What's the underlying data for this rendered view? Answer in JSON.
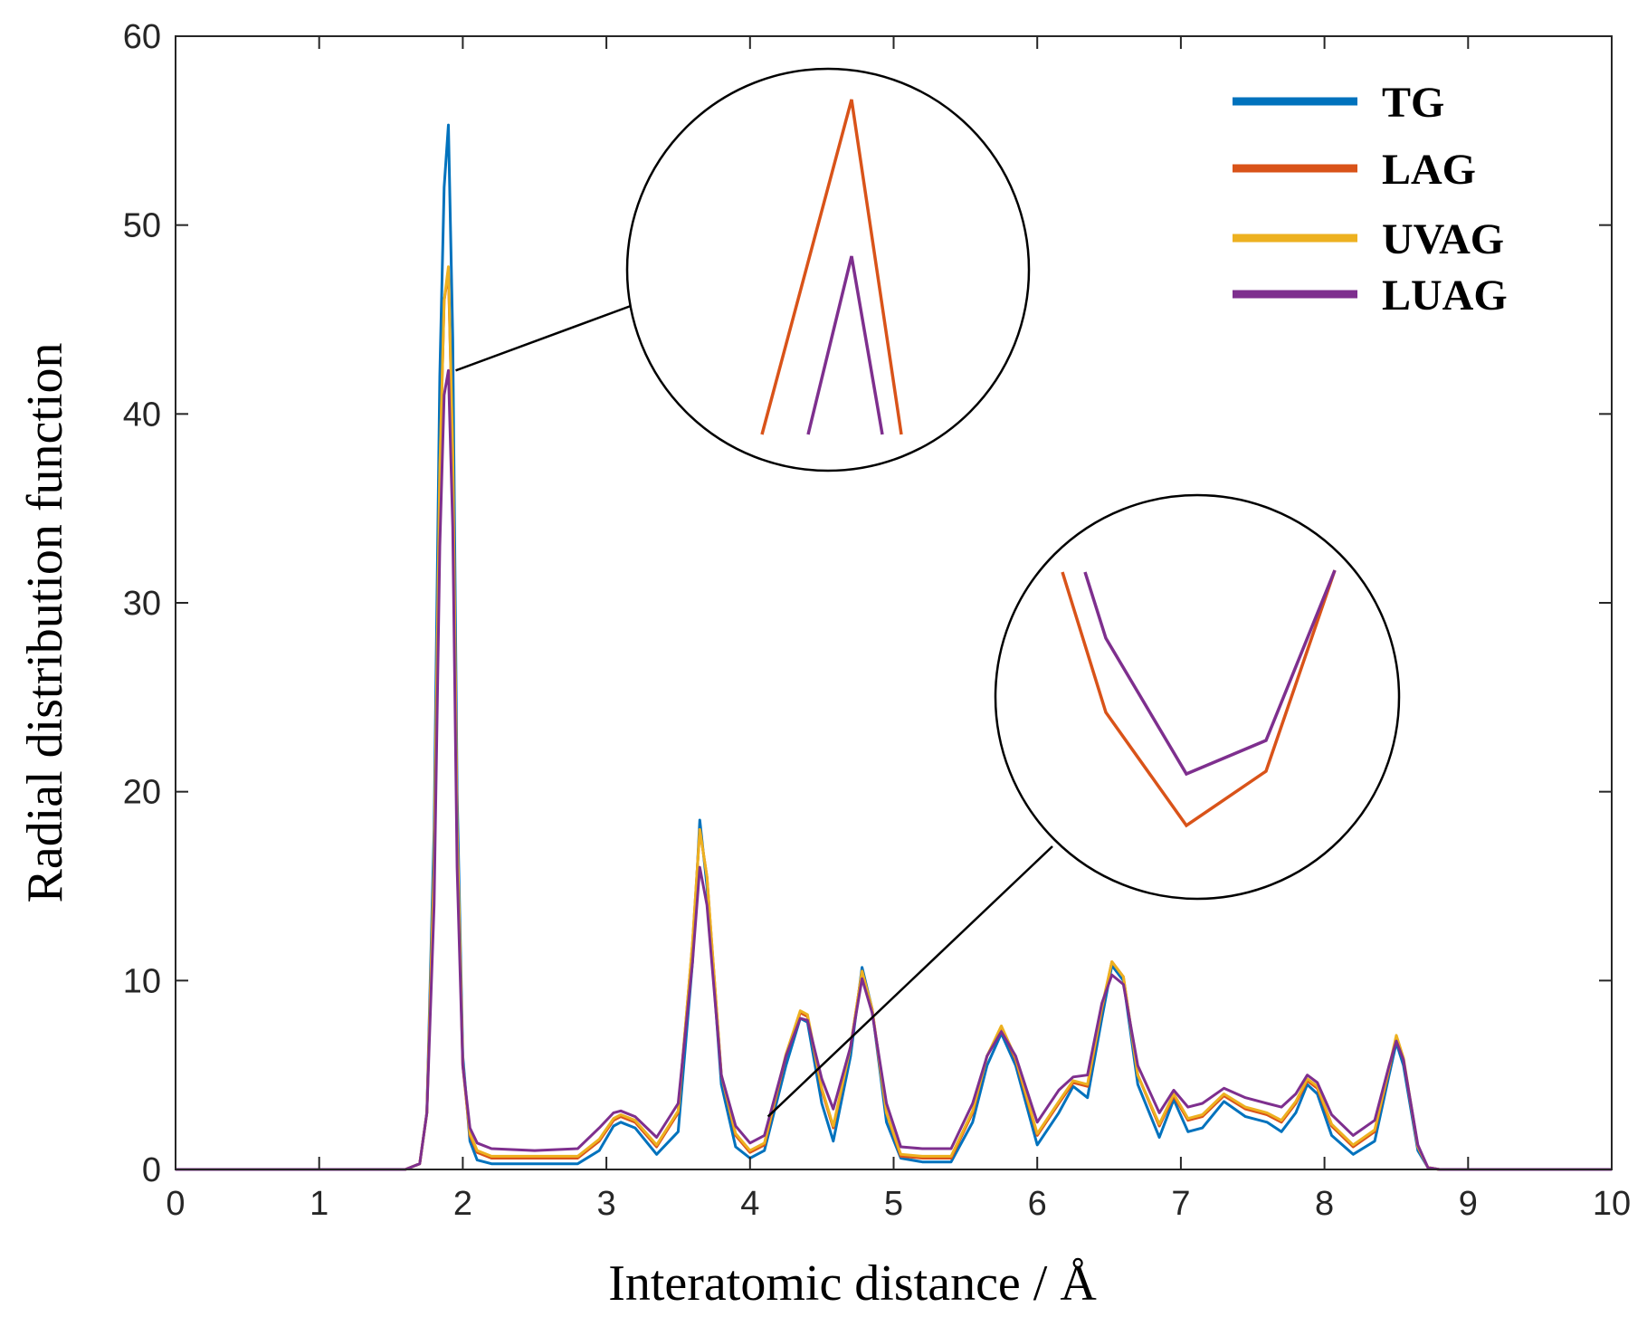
{
  "chart_data": {
    "type": "line",
    "title": "",
    "xlabel": "Interatomic distance / Å",
    "ylabel": "Radial distribution function",
    "xlim": [
      0,
      10
    ],
    "ylim": [
      0,
      60
    ],
    "xticks": [
      "0",
      "1",
      "2",
      "3",
      "4",
      "5",
      "6",
      "7",
      "8",
      "9",
      "10"
    ],
    "yticks": [
      "0",
      "10",
      "20",
      "30",
      "40",
      "50",
      "60"
    ],
    "legend_position": "top-right",
    "x": [
      0,
      1.6,
      1.7,
      1.75,
      1.8,
      1.84,
      1.87,
      1.9,
      1.93,
      1.96,
      2.0,
      2.05,
      2.1,
      2.2,
      2.5,
      2.8,
      2.95,
      3.05,
      3.1,
      3.2,
      3.35,
      3.5,
      3.6,
      3.65,
      3.7,
      3.8,
      3.9,
      4.0,
      4.1,
      4.25,
      4.35,
      4.4,
      4.5,
      4.58,
      4.7,
      4.78,
      4.85,
      4.95,
      5.05,
      5.2,
      5.4,
      5.55,
      5.65,
      5.75,
      5.85,
      6.0,
      6.15,
      6.25,
      6.35,
      6.45,
      6.52,
      6.6,
      6.7,
      6.85,
      6.95,
      7.05,
      7.15,
      7.3,
      7.45,
      7.6,
      7.7,
      7.8,
      7.88,
      7.95,
      8.05,
      8.2,
      8.35,
      8.45,
      8.5,
      8.55,
      8.65,
      8.72,
      8.8,
      10
    ],
    "series": [
      {
        "name": "TG",
        "color": "#0072BD",
        "values": [
          0,
          0,
          0.3,
          3,
          18,
          42,
          52,
          55.3,
          44,
          20,
          6,
          1.5,
          0.5,
          0.3,
          0.3,
          0.3,
          1,
          2.3,
          2.5,
          2.2,
          0.8,
          2,
          11,
          18.5,
          15,
          4.5,
          1.2,
          0.6,
          1,
          5.5,
          8,
          7.8,
          3.5,
          1.5,
          6,
          10.7,
          8.5,
          2.5,
          0.6,
          0.4,
          0.4,
          2.5,
          5.5,
          7.2,
          5.5,
          1.3,
          3,
          4.4,
          3.8,
          8,
          10.8,
          10,
          4.5,
          1.7,
          3.7,
          2,
          2.2,
          3.6,
          2.8,
          2.5,
          2,
          3,
          4.5,
          4,
          1.8,
          0.8,
          1.5,
          5,
          6.7,
          5.5,
          1,
          0.1,
          0,
          0
        ]
      },
      {
        "name": "LAG",
        "color": "#D95319",
        "values": [
          0,
          0,
          0.3,
          3,
          16,
          37,
          46,
          47.5,
          38,
          18,
          5.5,
          1.8,
          0.9,
          0.6,
          0.6,
          0.6,
          1.5,
          2.6,
          2.8,
          2.5,
          1.2,
          3,
          12,
          18,
          15.5,
          5,
          1.8,
          0.9,
          1.3,
          6,
          8.3,
          8.1,
          4.2,
          2.2,
          6.5,
          10.5,
          8.5,
          3,
          0.7,
          0.6,
          0.6,
          3,
          6,
          7.5,
          5.8,
          1.8,
          3.5,
          4.6,
          4.4,
          8.5,
          11,
          10.2,
          5,
          2.3,
          3.9,
          2.6,
          2.8,
          3.9,
          3.2,
          2.9,
          2.5,
          3.5,
          4.7,
          4.3,
          2.3,
          1.2,
          2,
          5.3,
          7,
          5.8,
          1.2,
          0.1,
          0,
          0
        ]
      },
      {
        "name": "UVAG",
        "color": "#EDB120",
        "values": [
          0,
          0,
          0.3,
          3,
          16,
          37,
          46,
          47.8,
          38,
          18,
          5.6,
          1.9,
          1,
          0.7,
          0.7,
          0.7,
          1.6,
          2.7,
          2.9,
          2.6,
          1.3,
          3.1,
          12,
          18,
          15.5,
          5,
          1.9,
          1,
          1.4,
          6.1,
          8.4,
          8.2,
          4.3,
          2.3,
          6.5,
          10.5,
          8.5,
          3,
          0.8,
          0.7,
          0.7,
          3.1,
          6,
          7.6,
          5.9,
          1.9,
          3.6,
          4.7,
          4.5,
          8.6,
          11,
          10.2,
          5,
          2.4,
          4,
          2.7,
          2.9,
          4,
          3.3,
          3,
          2.6,
          3.6,
          4.8,
          4.4,
          2.4,
          1.3,
          2.1,
          5.4,
          7.1,
          5.9,
          1.2,
          0.1,
          0,
          0
        ]
      },
      {
        "name": "LUAG",
        "color": "#7E2F8E",
        "values": [
          0,
          0,
          0.3,
          3,
          14,
          33,
          41,
          42.3,
          34,
          16,
          5.5,
          2.2,
          1.4,
          1.1,
          1,
          1.1,
          2.2,
          3,
          3.1,
          2.8,
          1.7,
          3.5,
          11,
          16,
          14,
          5,
          2.3,
          1.4,
          1.8,
          6,
          8,
          7.9,
          4.8,
          3.2,
          6.5,
          10.1,
          8.3,
          3.5,
          1.2,
          1.1,
          1.1,
          3.5,
          6,
          7.3,
          6,
          2.5,
          4.2,
          4.9,
          5,
          8.8,
          10.3,
          9.8,
          5.5,
          3,
          4.2,
          3.3,
          3.5,
          4.3,
          3.8,
          3.5,
          3.3,
          4,
          5,
          4.6,
          2.9,
          1.8,
          2.6,
          5.5,
          6.8,
          5.8,
          1.3,
          0.1,
          0,
          0
        ]
      }
    ],
    "insets": [
      {
        "name": "peak-zoom",
        "target": {
          "x": 1.9,
          "y": 42.3
        }
      },
      {
        "name": "valley-zoom",
        "target": {
          "x": 4.1,
          "y": 2.8
        }
      }
    ]
  }
}
